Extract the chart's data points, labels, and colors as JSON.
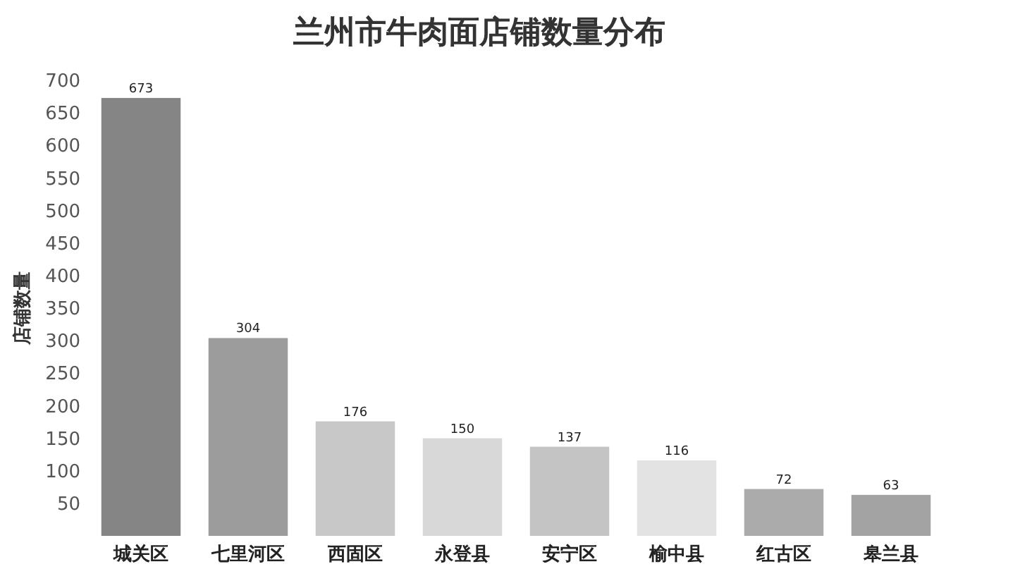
{
  "chart_data": {
    "type": "bar",
    "title": "兰州市牛肉面店铺数量分布",
    "ylabel": "店铺数量",
    "categories": [
      "城关区",
      "七里河区",
      "西固区",
      "永登县",
      "安宁区",
      "榆中县",
      "红古区",
      "皋兰县"
    ],
    "values": [
      673,
      304,
      176,
      150,
      137,
      116,
      72,
      63
    ],
    "colors": [
      "#858585",
      "#9c9c9c",
      "#c8c8c8",
      "#d8d8d8",
      "#c4c4c4",
      "#e3e3e3",
      "#ababab",
      "#a3a3a3"
    ],
    "ylim": [
      0,
      700
    ],
    "yticks": [
      50,
      100,
      150,
      200,
      250,
      300,
      350,
      400,
      450,
      500,
      550,
      600,
      650,
      700
    ],
    "data_labels": true,
    "grid": false
  }
}
